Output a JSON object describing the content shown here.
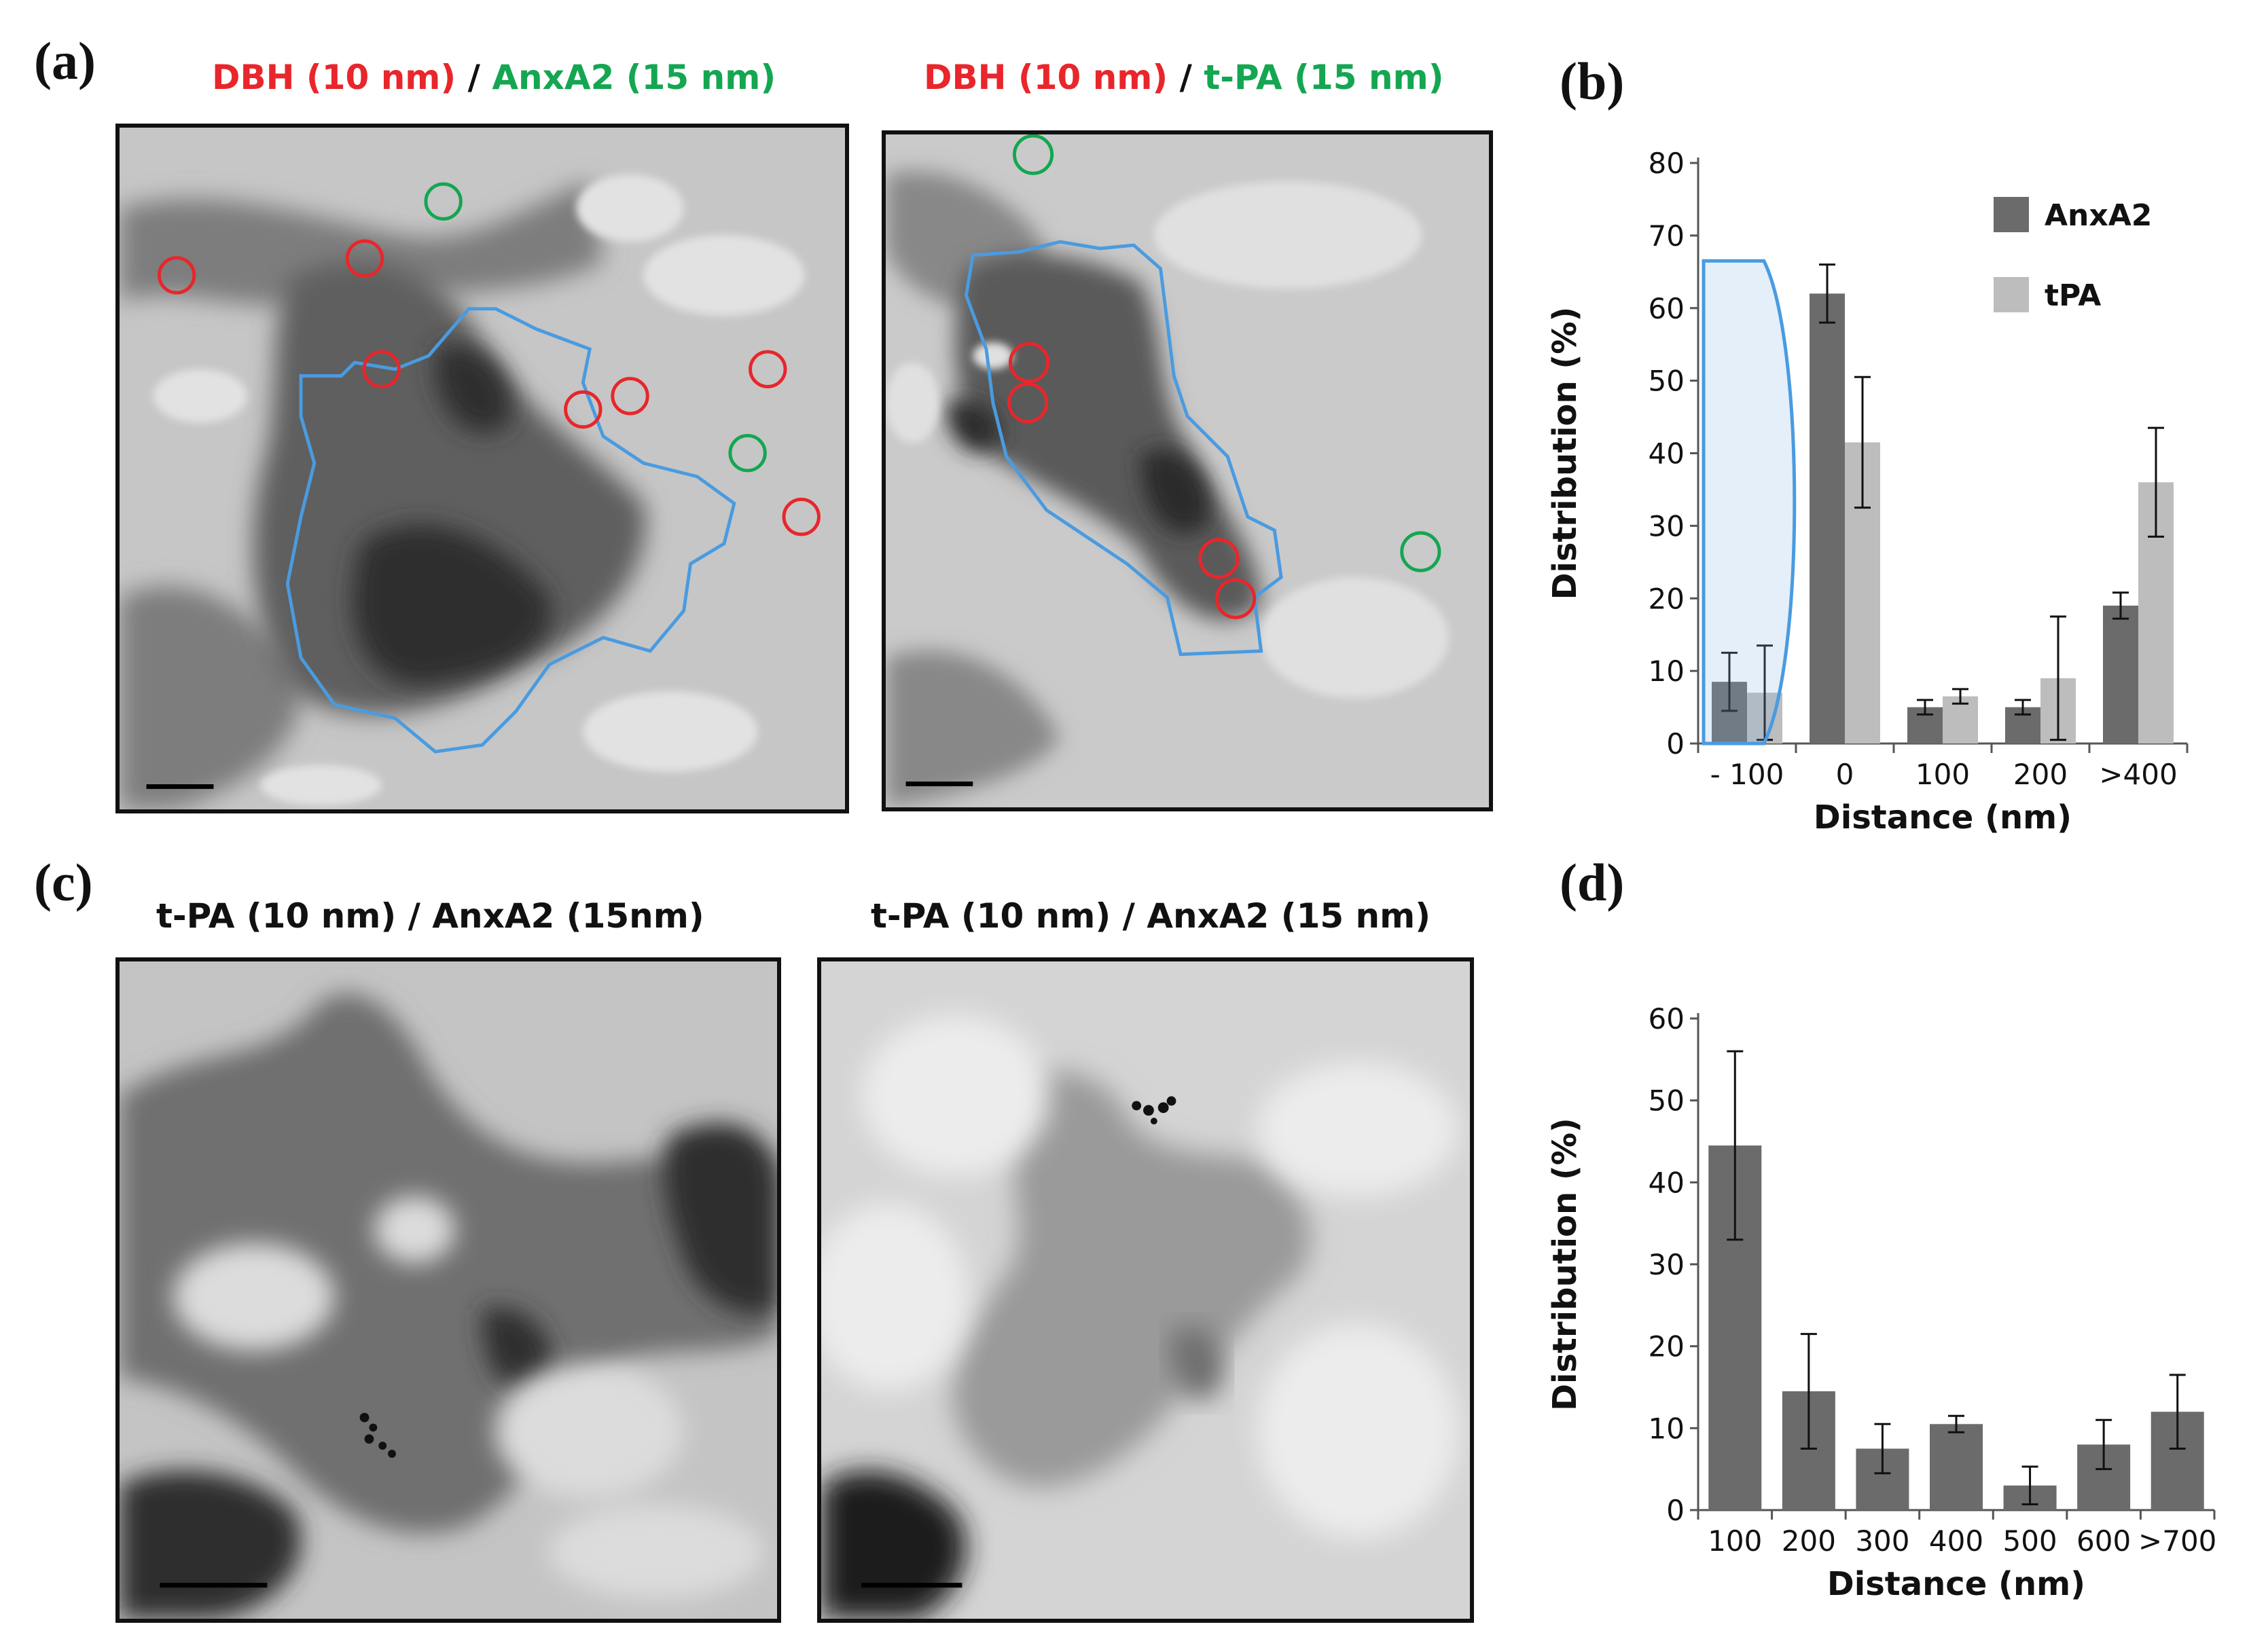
{
  "panel_a": {
    "letter": "(a)",
    "left": {
      "label1": "DBH (10 nm)",
      "sep": " / ",
      "label2": "AnxA2 (15 nm)"
    },
    "right": {
      "label1": "DBH (10 nm)",
      "sep": " / ",
      "label2": "t-PA (15 nm)"
    }
  },
  "panel_b": {
    "letter": "(b)"
  },
  "panel_c": {
    "letter": "(c)",
    "left_title": "t-PA (10 nm) / AnxA2 (15nm)",
    "right_title": "t-PA (10 nm) / AnxA2 (15 nm)"
  },
  "panel_d": {
    "letter": "(d)"
  },
  "colors": {
    "dbh_label": "#e8262b",
    "anxa2_label": "#14a651",
    "outline": "#4a9be0",
    "bar_dark": "#6b6b6b",
    "bar_light": "#bdbdbd",
    "circle_red": "#e8262b",
    "circle_green": "#14a651"
  },
  "chart_data": [
    {
      "type": "bar",
      "panel": "(b)",
      "categories": [
        "- 100",
        "0",
        "100",
        "200",
        ">400"
      ],
      "series": [
        {
          "name": "AnxA2",
          "values": [
            8.5,
            62,
            5,
            5,
            19
          ],
          "errors": [
            4,
            4,
            1,
            1,
            1.8
          ]
        },
        {
          "name": "tPA",
          "values": [
            7,
            41.5,
            6.5,
            9,
            36
          ],
          "errors": [
            6.5,
            9,
            1,
            8.5,
            7.5
          ]
        }
      ],
      "xlabel": "Distance (nm)",
      "ylabel": "Distribution (%)",
      "ylim": [
        0,
        80
      ],
      "yticks": [
        0,
        10,
        20,
        30,
        40,
        50,
        60,
        70,
        80
      ],
      "legend_position": "top-right"
    },
    {
      "type": "bar",
      "panel": "(d)",
      "categories": [
        "100",
        "200",
        "300",
        "400",
        "500",
        "600",
        ">700"
      ],
      "series": [
        {
          "values": [
            44.5,
            14.5,
            7.5,
            10.5,
            3,
            8,
            12
          ],
          "errors": [
            11.5,
            7,
            3,
            1,
            2.3,
            3,
            4.5
          ]
        }
      ],
      "xlabel": "Distance (nm)",
      "ylabel": "Distribution (%)",
      "ylim": [
        0,
        60
      ],
      "yticks": [
        0,
        10,
        20,
        30,
        40,
        50,
        60
      ]
    }
  ]
}
